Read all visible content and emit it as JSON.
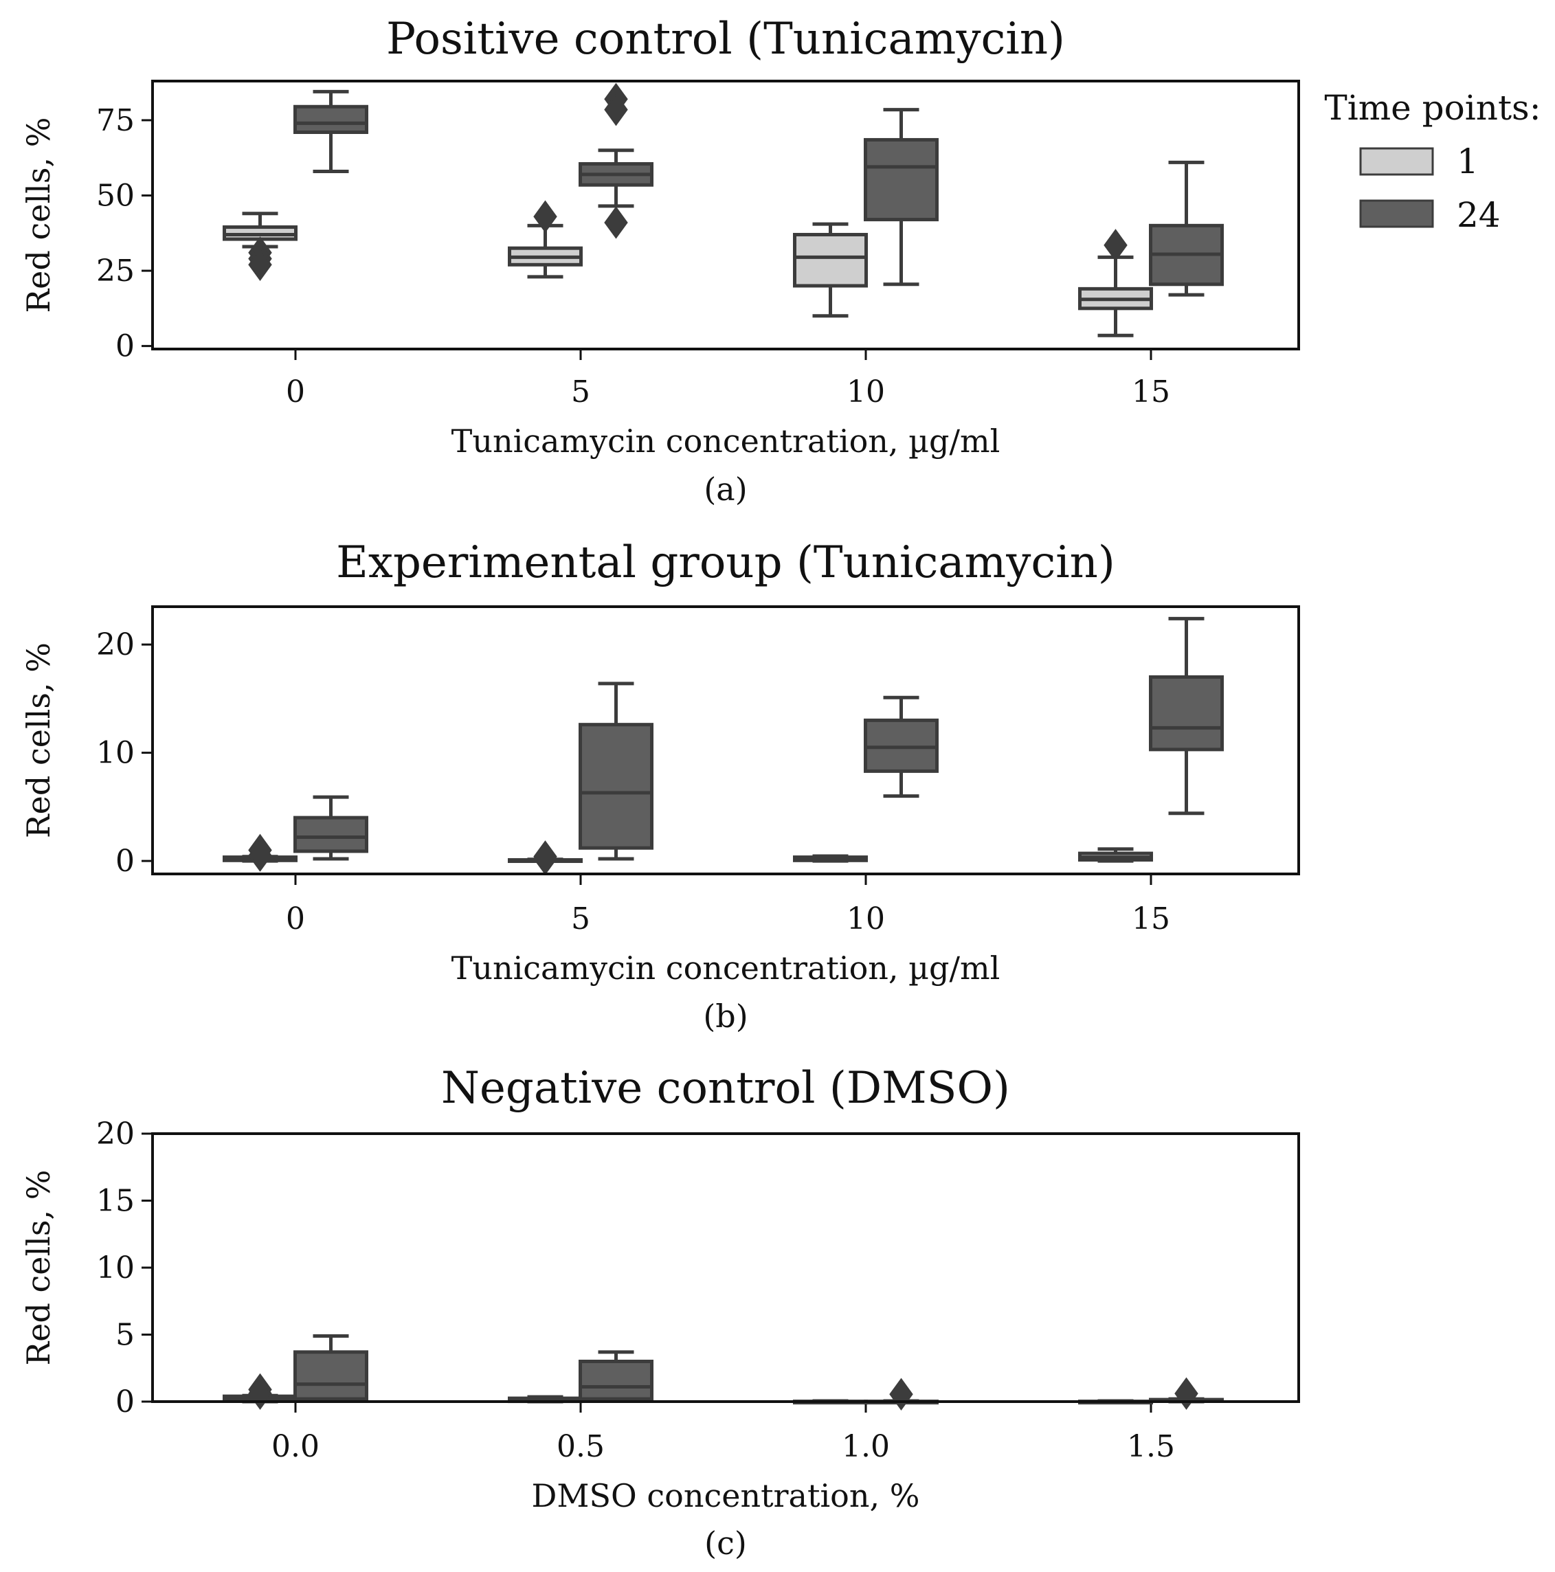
{
  "legend": {
    "title": "Time points:",
    "entries": [
      {
        "label": "1",
        "color": "#cfcfcf"
      },
      {
        "label": "24",
        "color": "#5f5f5f"
      }
    ]
  },
  "colors": {
    "light_box": "#cfcfcf",
    "dark_box": "#5f5f5f",
    "edge": "#3c3c3c"
  },
  "chart_data": [
    {
      "type": "box",
      "title": "Positive control (Tunicamycin)",
      "xlabel": "Tunicamycin concentration, µg/ml",
      "ylabel": "Red cells, %",
      "caption": "(a)",
      "categories": [
        "0",
        "5",
        "10",
        "15"
      ],
      "ylim": [
        -1,
        88
      ],
      "yticks": [
        0,
        25,
        50,
        75
      ],
      "grid": false,
      "legend_position": "right",
      "series": [
        {
          "name": "1",
          "boxes": [
            {
              "whislo": 33,
              "q1": 35.5,
              "med": 37,
              "q3": 39.5,
              "whishi": 44,
              "fliers": [
                31,
                29,
                27
              ]
            },
            {
              "whislo": 23,
              "q1": 27,
              "med": 29.5,
              "q3": 32.5,
              "whishi": 40,
              "fliers": [
                43
              ]
            },
            {
              "whislo": 10,
              "q1": 20,
              "med": 29.5,
              "q3": 37,
              "whishi": 40.5,
              "fliers": []
            },
            {
              "whislo": 3.5,
              "q1": 12.5,
              "med": 15.5,
              "q3": 19,
              "whishi": 29.5,
              "fliers": [
                33.5
              ]
            }
          ]
        },
        {
          "name": "24",
          "boxes": [
            {
              "whislo": 58,
              "q1": 71,
              "med": 74,
              "q3": 79.5,
              "whishi": 84.5,
              "fliers": []
            },
            {
              "whislo": 46.5,
              "q1": 53.5,
              "med": 57,
              "q3": 60.5,
              "whishi": 65,
              "fliers": [
                82,
                78.5,
                41
              ]
            },
            {
              "whislo": 20.5,
              "q1": 42,
              "med": 59.5,
              "q3": 68.5,
              "whishi": 78.5,
              "fliers": []
            },
            {
              "whislo": 17,
              "q1": 20.5,
              "med": 30.5,
              "q3": 40,
              "whishi": 61,
              "fliers": []
            }
          ]
        }
      ]
    },
    {
      "type": "box",
      "title": "Experimental group (Tunicamycin)",
      "xlabel": "Tunicamycin concentration, µg/ml",
      "ylabel": "Red cells, %",
      "caption": "(b)",
      "categories": [
        "0",
        "5",
        "10",
        "15"
      ],
      "ylim": [
        -1.2,
        23.5
      ],
      "yticks": [
        0,
        10,
        20
      ],
      "grid": false,
      "legend_position": "none",
      "series": [
        {
          "name": "1",
          "boxes": [
            {
              "whislo": 0,
              "q1": 0.05,
              "med": 0.2,
              "q3": 0.35,
              "whishi": 0.4,
              "fliers": [
                1.0,
                0.5
              ]
            },
            {
              "whislo": 0,
              "q1": 0.02,
              "med": 0.05,
              "q3": 0.1,
              "whishi": 0.15,
              "fliers": [
                0.4,
                0.2
              ]
            },
            {
              "whislo": 0,
              "q1": 0.05,
              "med": 0.15,
              "q3": 0.35,
              "whishi": 0.45,
              "fliers": []
            },
            {
              "whislo": 0,
              "q1": 0.1,
              "med": 0.35,
              "q3": 0.7,
              "whishi": 1.1,
              "fliers": []
            }
          ]
        },
        {
          "name": "24",
          "boxes": [
            {
              "whislo": 0.2,
              "q1": 0.9,
              "med": 2.2,
              "q3": 4.0,
              "whishi": 5.9,
              "fliers": []
            },
            {
              "whislo": 0.2,
              "q1": 1.2,
              "med": 6.3,
              "q3": 12.6,
              "whishi": 16.4,
              "fliers": []
            },
            {
              "whislo": 6.0,
              "q1": 8.3,
              "med": 10.5,
              "q3": 13.0,
              "whishi": 15.1,
              "fliers": []
            },
            {
              "whislo": 4.4,
              "q1": 10.3,
              "med": 12.3,
              "q3": 17.0,
              "whishi": 22.4,
              "fliers": []
            }
          ]
        }
      ]
    },
    {
      "type": "box",
      "title": "Negative control (DMSO)",
      "xlabel": "DMSO concentration, %",
      "ylabel": "Red cells, %",
      "caption": "(c)",
      "categories": [
        "0.0",
        "0.5",
        "1.0",
        "1.5"
      ],
      "ylim": [
        0,
        20
      ],
      "yticks": [
        0,
        5,
        10,
        15,
        20
      ],
      "grid": false,
      "legend_position": "none",
      "series": [
        {
          "name": "1",
          "boxes": [
            {
              "whislo": 0,
              "q1": 0.05,
              "med": 0.2,
              "q3": 0.4,
              "whishi": 0.45,
              "fliers": [
                0.9,
                0.6
              ]
            },
            {
              "whislo": 0,
              "q1": 0.02,
              "med": 0.1,
              "q3": 0.25,
              "whishi": 0.35,
              "fliers": []
            },
            {
              "whislo": 0,
              "q1": 0,
              "med": 0,
              "q3": 0.02,
              "whishi": 0.05,
              "fliers": []
            },
            {
              "whislo": 0,
              "q1": 0,
              "med": 0,
              "q3": 0.02,
              "whishi": 0.05,
              "fliers": []
            }
          ]
        },
        {
          "name": "24",
          "boxes": [
            {
              "whislo": 0.1,
              "q1": 0.2,
              "med": 1.3,
              "q3": 3.7,
              "whishi": 4.9,
              "fliers": []
            },
            {
              "whislo": 0.1,
              "q1": 0.2,
              "med": 1.1,
              "q3": 3.0,
              "whishi": 3.7,
              "fliers": []
            },
            {
              "whislo": 0,
              "q1": 0,
              "med": 0,
              "q3": 0.02,
              "whishi": 0.05,
              "fliers": [
                0.55
              ]
            },
            {
              "whislo": 0,
              "q1": 0.05,
              "med": 0.1,
              "q3": 0.15,
              "whishi": 0.2,
              "fliers": [
                0.6
              ]
            }
          ]
        }
      ]
    }
  ]
}
